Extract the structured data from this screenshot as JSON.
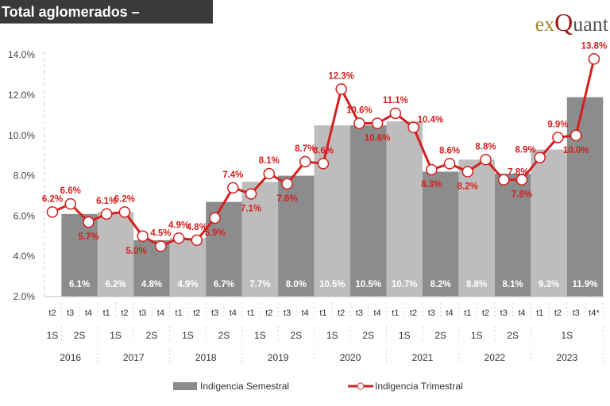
{
  "title": "Total aglomerados – Indigencia",
  "logo": {
    "text": "exQuant"
  },
  "chart_data": {
    "type": "bar+line",
    "ylim": [
      2,
      14
    ],
    "yticks": [
      "2.0%",
      "4.0%",
      "6.0%",
      "8.0%",
      "10.0%",
      "12.0%",
      "14.0%"
    ],
    "quarters": [
      "t2",
      "t3",
      "t4",
      "t1",
      "t2",
      "t3",
      "t4",
      "t1",
      "t2",
      "t3",
      "t4",
      "t1",
      "t2",
      "t3",
      "t4",
      "t1",
      "t2",
      "t3",
      "t4",
      "t1",
      "t2",
      "t3",
      "t4",
      "t1",
      "t2",
      "t3",
      "t4",
      "t1",
      "t2",
      "t3",
      "t4*"
    ],
    "years": [
      "2016",
      "2017",
      "2018",
      "2019",
      "2020",
      "2021",
      "2022",
      "2023"
    ],
    "semester_labels": [
      "1S",
      "2S",
      "1S",
      "2S",
      "1S",
      "2S",
      "1S",
      "2S",
      "1S",
      "2S",
      "1S",
      "2S",
      "1S",
      "2S",
      "1S"
    ],
    "series": [
      {
        "name": "Indigencia Semestral",
        "type": "bar",
        "color": "#8c8c8c",
        "color_alt": "#bdbdbd",
        "labels": [
          "6.1%",
          "6.2%",
          "4.8%",
          "4.9%",
          "6.7%",
          "7.7%",
          "8.0%",
          "10.5%",
          "10.5%",
          "10.7%",
          "8.2%",
          "8.8%",
          "8.1%",
          "9.3%",
          "11.9%"
        ],
        "values": [
          6.1,
          6.2,
          4.8,
          4.9,
          6.7,
          7.7,
          8.0,
          10.5,
          10.5,
          10.7,
          8.2,
          8.8,
          8.1,
          9.3,
          11.9
        ]
      },
      {
        "name": "Indigencia Trimestral",
        "type": "line",
        "color": "#d42020",
        "labels": [
          "6.2%",
          "6.6%",
          "5.7%",
          "6.1%",
          "6.2%",
          "5.0%",
          "4.5%",
          "4.9%",
          "4.8%",
          "5.9%",
          "7.4%",
          "7.1%",
          "8.1%",
          "7.6%",
          "8.7%",
          "8.6%",
          "12.3%",
          "10.6%",
          "10.6%",
          "11.1%",
          "10.4%",
          "8.3%",
          "8.6%",
          "8.2%",
          "8.8%",
          "7.8%",
          "7.8%",
          "8.9%",
          "9.9%",
          "10.0%",
          "13.8%"
        ],
        "values": [
          6.2,
          6.6,
          5.7,
          6.1,
          6.2,
          5.0,
          4.5,
          4.9,
          4.8,
          5.9,
          7.4,
          7.1,
          8.1,
          7.6,
          8.7,
          8.6,
          12.3,
          10.6,
          10.6,
          11.1,
          10.4,
          8.3,
          8.6,
          8.2,
          8.8,
          7.8,
          7.8,
          8.9,
          9.9,
          10.0,
          13.8
        ]
      }
    ]
  }
}
